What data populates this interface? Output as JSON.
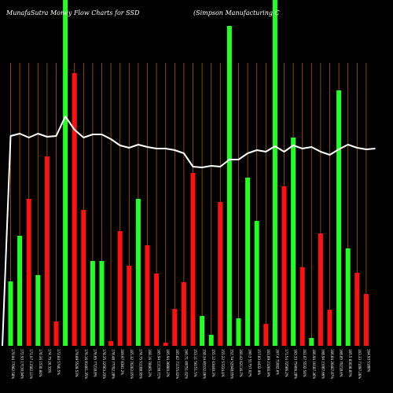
{
  "chart_data": {
    "type": "bar",
    "title_left": "MunafaSutra  Money Flow  Charts for SSD",
    "title_right": "(Simpson  Manufacturing C",
    "colors": {
      "up": "#22ff22",
      "down": "#ff1111",
      "line": "#ffffff",
      "grid": "#b05a00",
      "background": "#000000"
    },
    "ylim": [
      0,
      440
    ],
    "bars": [
      {
        "x": "170.94  77082.58%",
        "value": 82,
        "direction": "up"
      },
      {
        "x": "172.93  17130.94%",
        "value": 140,
        "direction": "up"
      },
      {
        "x": "171.07  11582.11%",
        "value": 187,
        "direction": "down"
      },
      {
        "x": "176.36  1530.84%",
        "value": 90,
        "direction": "up"
      },
      {
        "x": "174.75  20.33%",
        "value": 241,
        "direction": "down"
      },
      {
        "x": "172.84  5740.5%",
        "value": 31,
        "direction": "down"
      },
      {
        "x": "",
        "value": 440,
        "direction": "up"
      },
      {
        "x": "179.89  5528.53%",
        "value": 347,
        "direction": "down"
      },
      {
        "x": "176.16  81461.35%",
        "value": 173,
        "direction": "down"
      },
      {
        "x": "176.85  77218.8%",
        "value": 108,
        "direction": "up"
      },
      {
        "x": "178.35  22563.23%",
        "value": 108,
        "direction": "up"
      },
      {
        "x": "178.48  77792.28%",
        "value": 6,
        "direction": "down"
      },
      {
        "x": "169.97  8381.2%",
        "value": 146,
        "direction": "down"
      },
      {
        "x": "165.32  70262.05%",
        "value": 102,
        "direction": "down"
      },
      {
        "x": "174.75  51188.95%",
        "value": 187,
        "direction": "up"
      },
      {
        "x": "168.16  78465.2%",
        "value": 128,
        "direction": "down"
      },
      {
        "x": "165.94  11138.71%",
        "value": 92,
        "direction": "down"
      },
      {
        "x": "165.94  36860.2%",
        "value": 4,
        "direction": "down"
      },
      {
        "x": "165.82  71155.02%",
        "value": 47,
        "direction": "down"
      },
      {
        "x": "160.71  49751.02%",
        "value": 81,
        "direction": "down"
      },
      {
        "x": "153.11  56151.5%",
        "value": 220,
        "direction": "down"
      },
      {
        "x": "158.34  45532.06%",
        "value": 38,
        "direction": "up"
      },
      {
        "x": "155.12  43440.3%",
        "value": 14,
        "direction": "up"
      },
      {
        "x": "155.22  57234.4%",
        "value": 183,
        "direction": "down"
      },
      {
        "x": "152.74  52048.05%",
        "value": 407,
        "direction": "up"
      },
      {
        "x": "160.42  62116.7%",
        "value": 35,
        "direction": "up"
      },
      {
        "x": "160.3  51757.02%",
        "value": 214,
        "direction": "up"
      },
      {
        "x": "157.83  4432.9%",
        "value": 159,
        "direction": "up"
      },
      {
        "x": "161.89  21266.9%",
        "value": 28,
        "direction": "down"
      },
      {
        "x": "167.4  71002.6%",
        "value": 440,
        "direction": "up"
      },
      {
        "x": "171.54  72586.2%",
        "value": 203,
        "direction": "down"
      },
      {
        "x": "163.33  75406.28%",
        "value": 265,
        "direction": "up"
      },
      {
        "x": "161.67  5532.54%",
        "value": 100,
        "direction": "down"
      },
      {
        "x": "166.94  10187.36%",
        "value": 10,
        "direction": "up"
      },
      {
        "x": "168.94  21087.66%",
        "value": 143,
        "direction": "down"
      },
      {
        "x": "166.84  26467.87%",
        "value": 46,
        "direction": "down"
      },
      {
        "x": "168.85  70218.6%",
        "value": 325,
        "direction": "up"
      },
      {
        "x": "165.5  83038.87%",
        "value": 124,
        "direction": "up"
      },
      {
        "x": "163.33  71097.26%",
        "value": 93,
        "direction": "down"
      },
      {
        "x": "164.93  5180%",
        "value": 66,
        "direction": "down"
      }
    ],
    "line": [
      0,
      267,
      270,
      265,
      270,
      266,
      267,
      292,
      275,
      265,
      269,
      269,
      263,
      255,
      252,
      256,
      253,
      251,
      251,
      249,
      245,
      228,
      227,
      229,
      228,
      237,
      237,
      245,
      249,
      247,
      254,
      247,
      255,
      251,
      253,
      247,
      243,
      250,
      256,
      252,
      250,
      251
    ]
  }
}
